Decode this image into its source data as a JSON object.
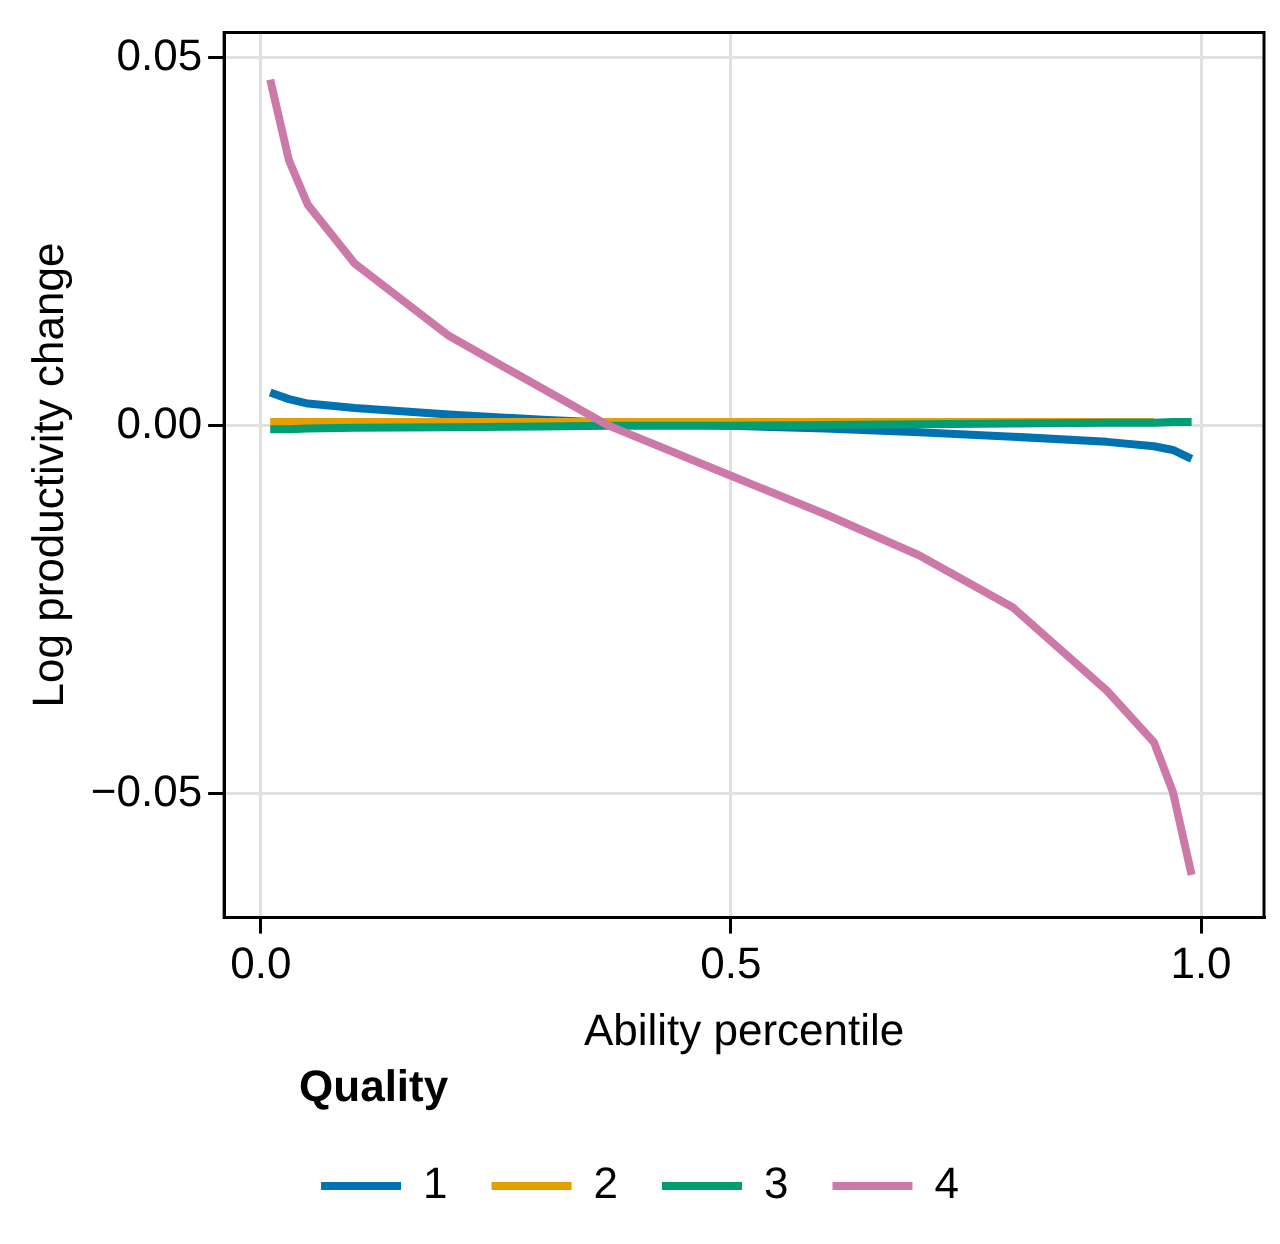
{
  "chart_data": {
    "type": "line",
    "xlabel": "Ability percentile",
    "ylabel": "Log productivity change",
    "legend_title": "Quality",
    "xlim": [
      -0.039,
      1.067
    ],
    "xticks": [
      {
        "value": 0,
        "label": "0.0"
      },
      0.5,
      {
        "value": 1,
        "label": "1.0"
      }
    ],
    "ylim": [
      -0.0668,
      0.0534
    ],
    "yticks": [
      {
        "value": -0.05,
        "label": "−0.05"
      },
      {
        "value": 0,
        "label": "0.00"
      },
      0.05
    ],
    "grid": true,
    "legend": "bottom",
    "marker": "none",
    "line_style": "solid",
    "x": [
      0.01,
      0.03,
      0.05,
      0.1,
      0.2,
      0.3,
      0.37,
      0.5,
      0.6,
      0.7,
      0.8,
      0.9,
      0.95,
      0.97,
      0.99
    ],
    "series": [
      {
        "name": "1",
        "color": "#0072b2",
        "values": [
          0.0045,
          0.0036,
          0.003,
          0.0024,
          0.0015,
          0.0008,
          0.0004,
          0,
          -0.0004,
          -0.0009,
          -0.0015,
          -0.0022,
          -0.0028,
          -0.0033,
          -0.0045
        ]
      },
      {
        "name": "2",
        "color": "#e69f00",
        "values": [
          0.0005,
          0.0005,
          0.0005,
          0.0005,
          0.0005,
          0.0005,
          0.0005,
          0.0005,
          0.0005,
          0.0005,
          0.0005,
          0.0005,
          0.0005,
          null,
          null
        ]
      },
      {
        "name": "3",
        "color": "#009e73",
        "values": [
          -0.0005,
          -0.0005,
          -0.0004,
          -0.0003,
          -0.0002,
          -0.0001,
          0,
          0,
          0.0001,
          0.0002,
          0.0003,
          0.0004,
          0.0004,
          0.0005,
          0.0005
        ]
      },
      {
        "name": "4",
        "color": "#cc79a7",
        "values": [
          0.047,
          0.036,
          0.03,
          0.022,
          0.0122,
          0.005,
          0,
          -0.0068,
          -0.012,
          -0.0176,
          -0.0247,
          -0.036,
          -0.043,
          -0.0497,
          -0.061
        ]
      }
    ]
  }
}
